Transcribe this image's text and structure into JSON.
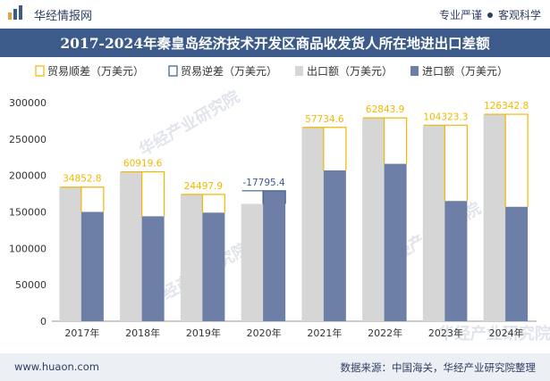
{
  "header": {
    "brand": "华经情报网",
    "slogan_left": "专业严谨",
    "slogan_right": "客观科学"
  },
  "title": "2017-2024年秦皇岛经济技术开发区商品收发货人所在地进出口差额",
  "footer": {
    "url": "www.huaon.com",
    "source": "数据来源：中国海关，华经产业研究院整理"
  },
  "watermark": "华经产业研究院",
  "colors": {
    "export": "#d6d6d6",
    "import": "#6d7fa6",
    "surplus": "#f0b800",
    "deficit": "#3c5b8a",
    "title_bg": "#3c5b8a"
  },
  "chart_data": {
    "type": "bar",
    "title": "2017-2024年秦皇岛经济技术开发区商品收发货人所在地进出口差额",
    "categories": [
      "2017年",
      "2018年",
      "2019年",
      "2020年",
      "2021年",
      "2022年",
      "2023年",
      "2024年"
    ],
    "ylim": [
      0,
      300000
    ],
    "yticks": [
      0,
      50000,
      100000,
      150000,
      200000,
      250000,
      300000
    ],
    "ytick_labels": [
      "0",
      "50000",
      "100000",
      "150000",
      "200000",
      "250000",
      "300000"
    ],
    "legend_position": "top",
    "legend": [
      "贸易顺差（万美元）",
      "贸易逆差（万美元）",
      "出口额（万美元）",
      "进口额（万美元）"
    ],
    "series": [
      {
        "name": "出口额（万美元）",
        "values": [
          184000,
          205000,
          174000,
          161000,
          266000,
          279000,
          269000,
          284000
        ]
      },
      {
        "name": "进口额（万美元）",
        "values": [
          150000,
          144000,
          149000,
          179000,
          207000,
          216000,
          165000,
          157000
        ]
      }
    ],
    "balance": [
      {
        "value": 34852.8,
        "label": "34852.8",
        "kind": "surplus"
      },
      {
        "value": 60919.6,
        "label": "60919.6",
        "kind": "surplus"
      },
      {
        "value": 24497.9,
        "label": "24497.9",
        "kind": "surplus"
      },
      {
        "value": -17795.4,
        "label": "-17795.4",
        "kind": "deficit"
      },
      {
        "value": 57734.6,
        "label": "57734.6",
        "kind": "surplus"
      },
      {
        "value": 62843.9,
        "label": "62843.9",
        "kind": "surplus"
      },
      {
        "value": 104323.3,
        "label": "104323.3",
        "kind": "surplus"
      },
      {
        "value": 126342.8,
        "label": "126342.8",
        "kind": "surplus"
      }
    ]
  }
}
